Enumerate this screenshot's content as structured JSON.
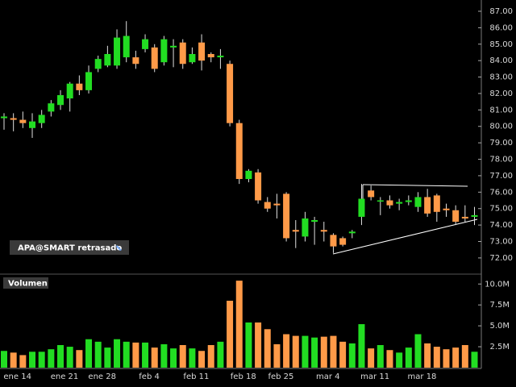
{
  "chart_data": {
    "type": "candlestick",
    "legend_label": "APA@SMART retrasado",
    "up_color": "#22dd22",
    "down_color": "#ff9a48",
    "categories": [
      null,
      "ene 14",
      null,
      null,
      null,
      null,
      "ene 21",
      null,
      null,
      null,
      "ene 28",
      null,
      null,
      null,
      null,
      "feb 4",
      null,
      null,
      null,
      null,
      "feb 11",
      null,
      null,
      null,
      null,
      "feb 18",
      null,
      null,
      null,
      "feb 25",
      null,
      null,
      null,
      null,
      "mar 4",
      null,
      null,
      null,
      null,
      "mar 11",
      null,
      null,
      null,
      null,
      "mar 18",
      null,
      null,
      null,
      null,
      null,
      null
    ],
    "open": [
      80.5,
      80.5,
      80.4,
      79.9,
      80.2,
      80.9,
      81.3,
      81.7,
      82.6,
      82.2,
      83.5,
      83.7,
      83.7,
      84.2,
      84.2,
      84.7,
      84.8,
      83.9,
      84.8,
      85.1,
      83.9,
      85.1,
      84.4,
      84.2,
      83.8,
      80.2,
      76.8,
      77.2,
      75.4,
      75.3,
      75.9,
      73.7,
      73.3,
      74.2,
      73.7,
      73.4,
      73.2,
      73.5,
      74.5,
      76.1,
      75.5,
      75.5,
      75.3,
      75.4,
      75.1,
      75.7,
      75.8,
      75.0,
      74.9,
      74.5,
      74.5
    ],
    "high": [
      80.8,
      80.8,
      80.9,
      80.8,
      81.0,
      81.6,
      82.2,
      82.7,
      83.1,
      83.7,
      84.3,
      84.9,
      85.9,
      86.4,
      84.6,
      85.6,
      85.0,
      85.5,
      85.3,
      85.3,
      84.8,
      85.6,
      84.5,
      84.7,
      84.0,
      80.4,
      77.4,
      77.4,
      75.7,
      75.9,
      76.0,
      74.3,
      74.8,
      74.5,
      74.2,
      73.5,
      73.3,
      73.7,
      76.5,
      76.4,
      75.7,
      75.8,
      75.6,
      75.8,
      76.0,
      76.2,
      75.9,
      75.3,
      75.2,
      75.2,
      75.1
    ],
    "low": [
      79.8,
      79.7,
      79.9,
      79.3,
      79.9,
      80.6,
      81.0,
      80.9,
      81.9,
      82.0,
      83.3,
      83.6,
      83.5,
      83.9,
      83.5,
      84.5,
      83.3,
      83.7,
      83.6,
      83.5,
      83.8,
      83.4,
      83.9,
      83.5,
      80.0,
      76.5,
      76.6,
      75.3,
      74.8,
      74.4,
      73.0,
      72.6,
      73.0,
      72.8,
      73.0,
      72.3,
      72.7,
      73.2,
      74.0,
      75.5,
      74.6,
      75.0,
      74.9,
      75.2,
      74.8,
      74.5,
      74.2,
      74.5,
      74.0,
      74.2,
      74.0
    ],
    "close": [
      80.6,
      80.4,
      80.2,
      80.3,
      80.7,
      81.4,
      81.9,
      82.6,
      82.2,
      83.3,
      84.1,
      84.4,
      85.4,
      85.5,
      83.8,
      85.3,
      83.5,
      85.3,
      84.9,
      83.8,
      84.4,
      84.0,
      84.2,
      84.3,
      80.2,
      76.8,
      77.3,
      75.5,
      75.0,
      75.2,
      73.2,
      73.6,
      74.4,
      74.3,
      73.6,
      72.7,
      72.8,
      73.6,
      75.6,
      75.7,
      75.5,
      75.2,
      75.4,
      75.5,
      75.7,
      74.7,
      74.8,
      74.9,
      74.2,
      74.4,
      74.6
    ],
    "ylim": [
      71.26,
      87.44
    ],
    "yticks": [
      {
        "value": 72,
        "label": "72.00"
      },
      {
        "value": 73,
        "label": "73.00"
      },
      {
        "value": 74,
        "label": "74.00"
      },
      {
        "value": 75,
        "label": "75.00"
      },
      {
        "value": 76,
        "label": "76.00"
      },
      {
        "value": 77,
        "label": "77.00"
      },
      {
        "value": 78,
        "label": "78.00"
      },
      {
        "value": 79,
        "label": "79.00"
      },
      {
        "value": 80,
        "label": "80.00"
      },
      {
        "value": 81,
        "label": "81.00"
      },
      {
        "value": 82,
        "label": "82.00"
      },
      {
        "value": 83,
        "label": "83.00"
      },
      {
        "value": 84,
        "label": "84.00"
      },
      {
        "value": 85,
        "label": "85.00"
      },
      {
        "value": 86,
        "label": "86.00"
      },
      {
        "value": 87,
        "label": "87.00"
      }
    ],
    "volume": {
      "title": "Volumen",
      "values": [
        2.0,
        1.8,
        1.5,
        1.9,
        1.9,
        2.2,
        2.7,
        2.5,
        2.1,
        3.4,
        3.1,
        2.4,
        3.4,
        3.1,
        3.0,
        3.0,
        2.4,
        2.8,
        2.3,
        2.7,
        2.3,
        2.0,
        2.7,
        3.1,
        8.0,
        10.4,
        5.4,
        5.4,
        4.6,
        2.8,
        4.0,
        3.8,
        3.8,
        3.6,
        3.7,
        3.8,
        3.1,
        2.9,
        5.2,
        2.3,
        2.7,
        2.1,
        1.8,
        2.4,
        4.0,
        2.9,
        2.5,
        2.2,
        2.4,
        2.7,
        1.9
      ],
      "ylim": [
        0,
        10.7
      ],
      "yticks": [
        {
          "value": 2.5,
          "label": "2.5M"
        },
        {
          "value": 5,
          "label": "5.0M"
        },
        {
          "value": 7.5,
          "label": "7.5M"
        },
        {
          "value": 10,
          "label": "10.0M"
        }
      ]
    }
  }
}
